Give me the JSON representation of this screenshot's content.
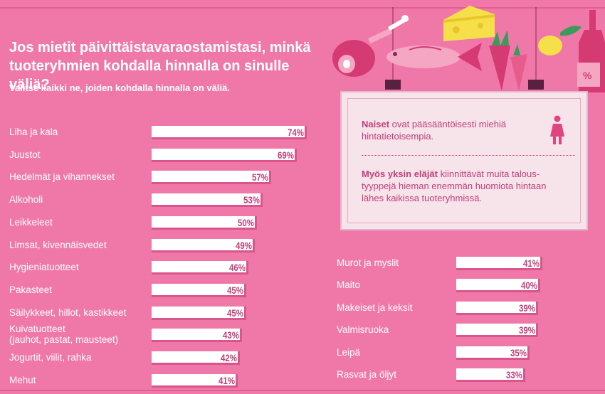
{
  "title": "Jos mietit päivittäistavaraostamistasi, minkä tuoteryhmien kohdalla hinnalla on sinulle väliä?",
  "subtitle": "Valitse kaikki ne, joiden kohdalla hinnalla on väliä.",
  "info": {
    "p1_bold": "Naiset",
    "p1_rest": " ovat pääsääntöisesti miehiä hintatietoisempia.",
    "p2_bold": "Myös yksin eläjät",
    "p2_rest": " kiinnittävät muita talous-tyyppejä hieman enemmän huomiota hintaan lähes kaikissa tuoteryhmissä."
  },
  "colors": {
    "background": "#f078a8",
    "bar": "#ffffff",
    "value_text": "#c0407a",
    "accent": "#e0457f"
  },
  "chart_data": {
    "type": "bar",
    "orientation": "horizontal",
    "unit": "%",
    "xlim": [
      0,
      100
    ],
    "title": "Jos mietit päivittäistavaraostamistasi, minkä tuoteryhmien kohdalla hinnalla on sinulle väliä?",
    "categories": [
      "Liha ja kala",
      "Juustot",
      "Hedelmät ja vihannekset",
      "Alkoholi",
      "Leikkeleet",
      "Limsat, kivennäisvedet",
      "Hygieniatuotteet",
      "Pakasteet",
      "Säilykkeet, hillot, kastikkeet",
      "Kuivatuotteet (jauhot, pastat, mausteet)",
      "Jogurtit, viilit, rahka",
      "Mehut",
      "Murot ja myslit",
      "Maito",
      "Makeiset ja keksit",
      "Valmisruoka",
      "Leipä",
      "Rasvat ja öljyt"
    ],
    "values": [
      74,
      69,
      57,
      53,
      50,
      49,
      46,
      45,
      45,
      43,
      42,
      41,
      41,
      40,
      39,
      39,
      35,
      33
    ],
    "labels": [
      "74%",
      "69%",
      "57%",
      "53%",
      "50%",
      "49%",
      "46%",
      "45%",
      "45%",
      "43%",
      "42%",
      "41%",
      "41%",
      "40%",
      "39%",
      "39%",
      "35%",
      "33%"
    ]
  }
}
